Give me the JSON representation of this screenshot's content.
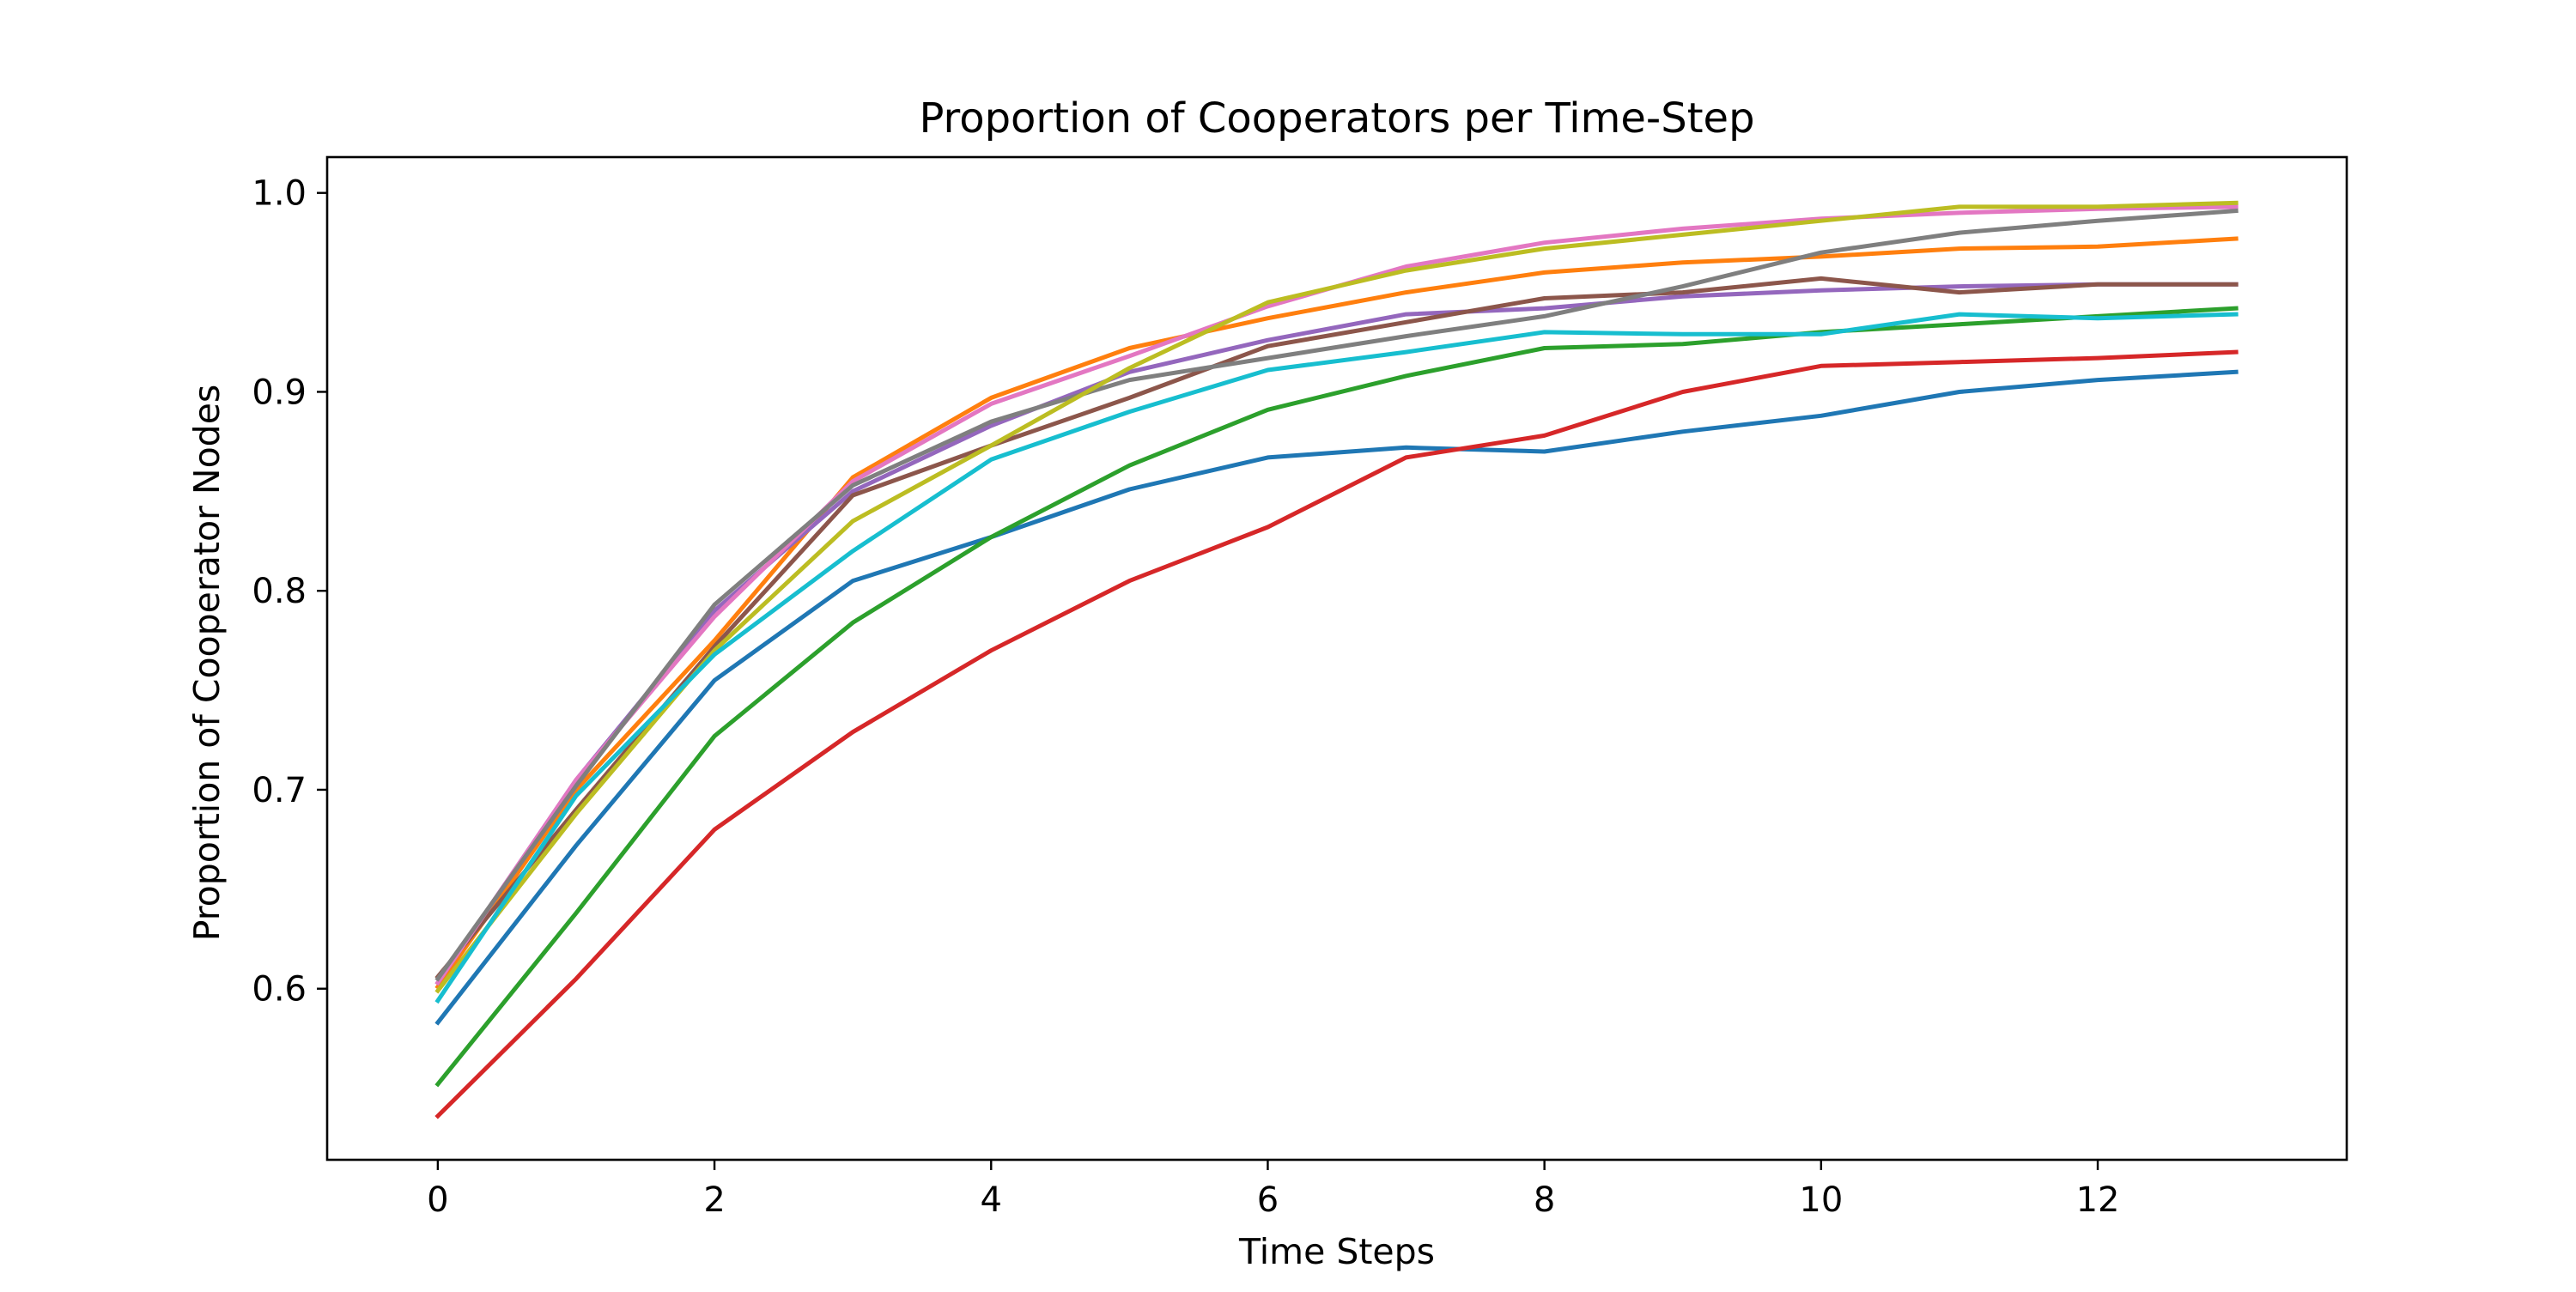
{
  "chart_data": {
    "type": "line",
    "title": "Proportion of Cooperators per Time-Step",
    "xlabel": "Time Steps",
    "ylabel": "Proportion of Cooperator Nodes",
    "xlim": [
      -0.8,
      13.8
    ],
    "ylim": [
      0.514,
      1.018
    ],
    "xticks": [
      0,
      2,
      4,
      6,
      8,
      10,
      12
    ],
    "yticks": [
      0.6,
      0.7,
      0.8,
      0.9,
      1.0
    ],
    "xtick_labels": [
      "0",
      "2",
      "4",
      "6",
      "8",
      "10",
      "12"
    ],
    "ytick_labels": [
      "0.6",
      "0.7",
      "0.8",
      "0.9",
      "1.0"
    ],
    "grid": false,
    "legend": "none",
    "x": [
      0,
      1,
      2,
      3,
      4,
      5,
      6,
      7,
      8,
      9,
      10,
      11,
      12,
      13
    ],
    "series": [
      {
        "color": "#1f77b4",
        "values": [
          0.583,
          0.672,
          0.755,
          0.805,
          0.827,
          0.851,
          0.867,
          0.872,
          0.87,
          0.88,
          0.888,
          0.9,
          0.906,
          0.91
        ]
      },
      {
        "color": "#ff7f0e",
        "values": [
          0.601,
          0.7,
          0.775,
          0.857,
          0.897,
          0.922,
          0.937,
          0.95,
          0.96,
          0.965,
          0.968,
          0.972,
          0.973,
          0.977
        ]
      },
      {
        "color": "#2ca02c",
        "values": [
          0.552,
          0.638,
          0.727,
          0.784,
          0.827,
          0.863,
          0.891,
          0.908,
          0.922,
          0.924,
          0.93,
          0.934,
          0.938,
          0.942
        ]
      },
      {
        "color": "#d62728",
        "values": [
          0.536,
          0.605,
          0.68,
          0.729,
          0.77,
          0.805,
          0.832,
          0.867,
          0.878,
          0.9,
          0.913,
          0.915,
          0.917,
          0.92
        ]
      },
      {
        "color": "#9467bd",
        "values": [
          0.603,
          0.705,
          0.79,
          0.85,
          0.883,
          0.91,
          0.926,
          0.939,
          0.942,
          0.948,
          0.951,
          0.953,
          0.954,
          0.954
        ]
      },
      {
        "color": "#8c564b",
        "values": [
          0.606,
          0.69,
          0.772,
          0.848,
          0.873,
          0.897,
          0.923,
          0.935,
          0.947,
          0.95,
          0.957,
          0.95,
          0.954,
          0.954
        ]
      },
      {
        "color": "#e377c2",
        "values": [
          0.603,
          0.705,
          0.787,
          0.855,
          0.894,
          0.918,
          0.943,
          0.963,
          0.975,
          0.982,
          0.987,
          0.99,
          0.992,
          0.993
        ]
      },
      {
        "color": "#7f7f7f",
        "values": [
          0.605,
          0.702,
          0.793,
          0.853,
          0.885,
          0.906,
          0.917,
          0.928,
          0.938,
          0.953,
          0.97,
          0.98,
          0.986,
          0.991
        ]
      },
      {
        "color": "#bcbd22",
        "values": [
          0.599,
          0.688,
          0.77,
          0.835,
          0.873,
          0.912,
          0.945,
          0.961,
          0.972,
          0.979,
          0.986,
          0.993,
          0.993,
          0.995
        ]
      },
      {
        "color": "#17becf",
        "values": [
          0.594,
          0.697,
          0.768,
          0.82,
          0.866,
          0.89,
          0.911,
          0.92,
          0.93,
          0.929,
          0.929,
          0.939,
          0.937,
          0.939
        ]
      }
    ]
  }
}
